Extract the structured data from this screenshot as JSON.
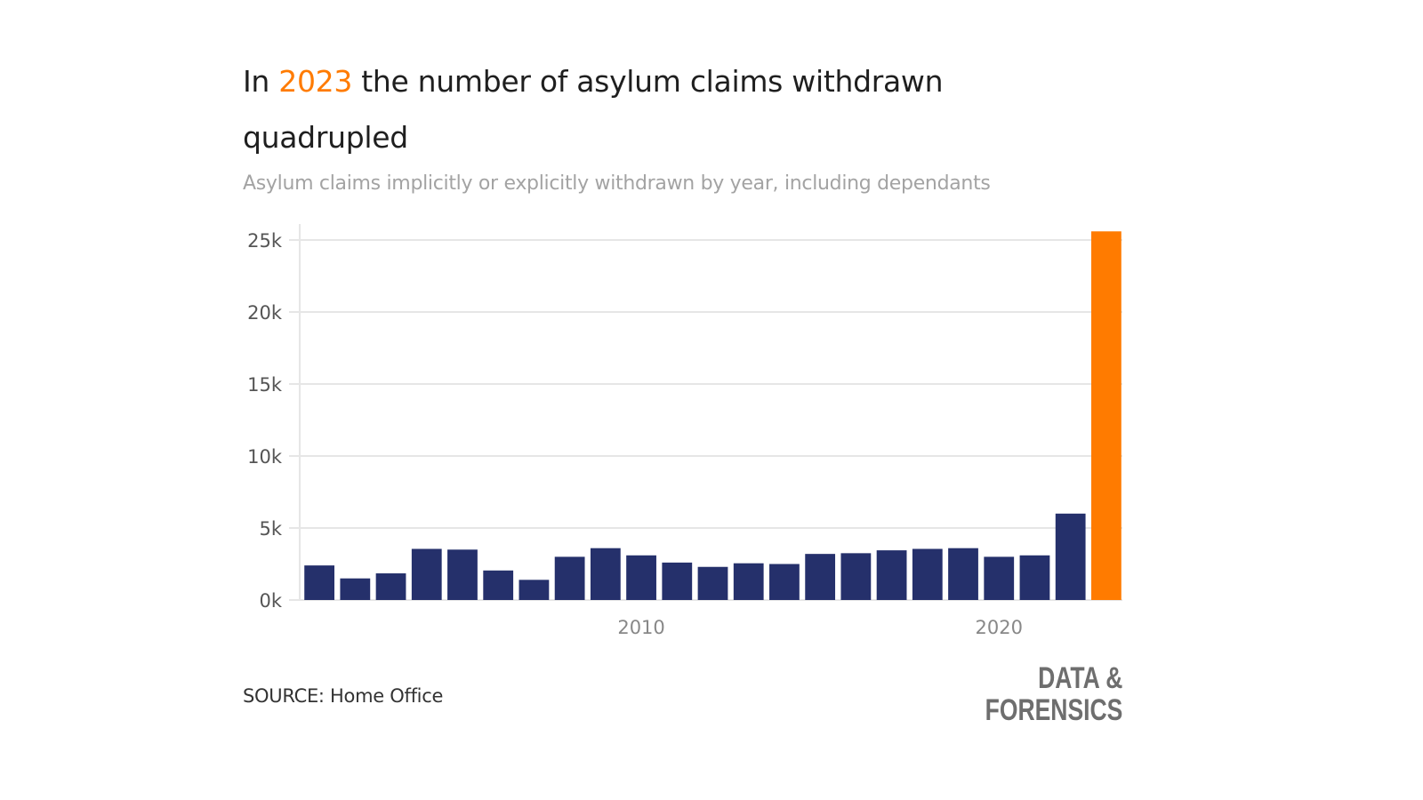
{
  "title": {
    "prefix": "In ",
    "highlight": "2023",
    "suffix": " the number of asylum claims withdrawn quadrupled"
  },
  "subtitle": "Asylum claims implicitly or explicitly withdrawn by year, including dependants",
  "source": "SOURCE: Home Office",
  "logo": "DATA & FORENSICS",
  "colors": {
    "bar": "#25306b",
    "highlight": "#ff7b00",
    "grid": "#e6e6e6"
  },
  "chart_data": {
    "type": "bar",
    "title": "In 2023 the number of asylum claims withdrawn quadrupled",
    "subtitle": "Asylum claims implicitly or explicitly withdrawn by year, including dependants",
    "xlabel": "",
    "ylabel": "",
    "categories": [
      2001,
      2002,
      2003,
      2004,
      2005,
      2006,
      2007,
      2008,
      2009,
      2010,
      2011,
      2012,
      2013,
      2014,
      2015,
      2016,
      2017,
      2018,
      2019,
      2020,
      2021,
      2022,
      2023
    ],
    "values": [
      2400,
      1500,
      1850,
      3550,
      3500,
      2050,
      1400,
      3000,
      3600,
      3100,
      2600,
      2300,
      2550,
      2500,
      3200,
      3250,
      3450,
      3550,
      3600,
      3000,
      3100,
      6000,
      25600
    ],
    "highlight_category": 2023,
    "ylim": [
      0,
      25000
    ],
    "yticks": [
      0,
      5000,
      10000,
      15000,
      20000,
      25000
    ],
    "ytick_labels": [
      "0k",
      "5k",
      "10k",
      "15k",
      "20k",
      "25k"
    ],
    "xticks": [
      2010,
      2020
    ],
    "xtick_labels": [
      "2010",
      "2020"
    ],
    "grid": true,
    "legend": "none"
  }
}
